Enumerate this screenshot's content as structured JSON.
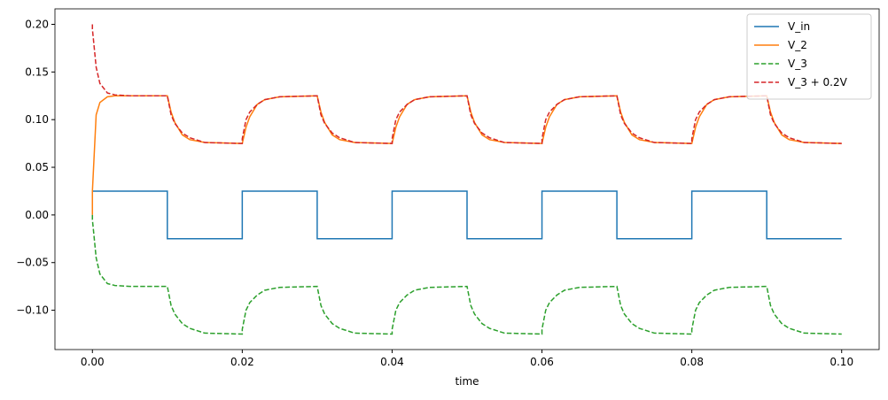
{
  "chart_data": {
    "type": "line",
    "xlabel": "time",
    "x": [
      0,
      0,
      0.0005,
      0.001,
      0.002,
      0.003,
      0.005,
      0.01,
      0.01,
      0.0105,
      0.011,
      0.012,
      0.013,
      0.015,
      0.02,
      0.02,
      0.0205,
      0.021,
      0.022,
      0.023,
      0.025,
      0.03,
      0.03,
      0.0305,
      0.031,
      0.032,
      0.033,
      0.035,
      0.04,
      0.04,
      0.0405,
      0.041,
      0.042,
      0.043,
      0.045,
      0.05,
      0.05,
      0.0505,
      0.051,
      0.052,
      0.053,
      0.055,
      0.06,
      0.06,
      0.0605,
      0.061,
      0.062,
      0.063,
      0.065,
      0.07,
      0.07,
      0.0705,
      0.071,
      0.072,
      0.073,
      0.075,
      0.08,
      0.08,
      0.0805,
      0.081,
      0.082,
      0.083,
      0.085,
      0.09,
      0.09,
      0.0905,
      0.091,
      0.092,
      0.093,
      0.095,
      0.1
    ],
    "series": [
      {
        "name": "V_in",
        "color": "#1f77b4",
        "dashed": false,
        "values": [
          0.025,
          0.025,
          0.025,
          0.025,
          0.025,
          0.025,
          0.025,
          0.025,
          -0.025,
          -0.025,
          -0.025,
          -0.025,
          -0.025,
          -0.025,
          -0.025,
          0.025,
          0.025,
          0.025,
          0.025,
          0.025,
          0.025,
          0.025,
          -0.025,
          -0.025,
          -0.025,
          -0.025,
          -0.025,
          -0.025,
          -0.025,
          0.025,
          0.025,
          0.025,
          0.025,
          0.025,
          0.025,
          0.025,
          -0.025,
          -0.025,
          -0.025,
          -0.025,
          -0.025,
          -0.025,
          -0.025,
          0.025,
          0.025,
          0.025,
          0.025,
          0.025,
          0.025,
          0.025,
          -0.025,
          -0.025,
          -0.025,
          -0.025,
          -0.025,
          -0.025,
          -0.025,
          0.025,
          0.025,
          0.025,
          0.025,
          0.025,
          0.025,
          0.025,
          -0.025,
          -0.025,
          -0.025,
          -0.025,
          -0.025,
          -0.025,
          -0.025
        ]
      },
      {
        "name": "V_2",
        "color": "#ff7f0e",
        "dashed": false,
        "values": [
          0,
          0.025,
          0.105,
          0.118,
          0.124,
          0.125,
          0.125,
          0.125,
          0.125,
          0.108,
          0.097,
          0.084,
          0.079,
          0.076,
          0.075,
          0.075,
          0.092,
          0.103,
          0.116,
          0.121,
          0.124,
          0.125,
          0.125,
          0.108,
          0.097,
          0.084,
          0.079,
          0.076,
          0.075,
          0.075,
          0.092,
          0.103,
          0.116,
          0.121,
          0.124,
          0.125,
          0.125,
          0.108,
          0.097,
          0.084,
          0.079,
          0.076,
          0.075,
          0.075,
          0.092,
          0.103,
          0.116,
          0.121,
          0.124,
          0.125,
          0.125,
          0.108,
          0.097,
          0.084,
          0.079,
          0.076,
          0.075,
          0.075,
          0.092,
          0.103,
          0.116,
          0.121,
          0.124,
          0.125,
          0.125,
          0.108,
          0.097,
          0.084,
          0.079,
          0.076,
          0.075
        ]
      },
      {
        "name": "V_3",
        "color": "#2ca02c",
        "dashed": true,
        "values": [
          0,
          -0.005,
          -0.045,
          -0.062,
          -0.072,
          -0.074,
          -0.075,
          -0.075,
          -0.075,
          -0.095,
          -0.104,
          -0.114,
          -0.119,
          -0.124,
          -0.125,
          -0.12,
          -0.1,
          -0.092,
          -0.084,
          -0.079,
          -0.076,
          -0.075,
          -0.075,
          -0.095,
          -0.104,
          -0.114,
          -0.119,
          -0.124,
          -0.125,
          -0.12,
          -0.1,
          -0.092,
          -0.084,
          -0.079,
          -0.076,
          -0.075,
          -0.075,
          -0.095,
          -0.104,
          -0.114,
          -0.119,
          -0.124,
          -0.125,
          -0.12,
          -0.1,
          -0.092,
          -0.084,
          -0.079,
          -0.076,
          -0.075,
          -0.075,
          -0.095,
          -0.104,
          -0.114,
          -0.119,
          -0.124,
          -0.125,
          -0.12,
          -0.1,
          -0.092,
          -0.084,
          -0.079,
          -0.076,
          -0.075,
          -0.075,
          -0.095,
          -0.104,
          -0.114,
          -0.119,
          -0.124,
          -0.125
        ]
      },
      {
        "name": "V_3 + 0.2V",
        "color": "#d62728",
        "dashed": true,
        "values": [
          0.2,
          0.195,
          0.155,
          0.138,
          0.128,
          0.126,
          0.125,
          0.125,
          0.125,
          0.105,
          0.096,
          0.086,
          0.081,
          0.076,
          0.075,
          0.08,
          0.1,
          0.108,
          0.116,
          0.121,
          0.124,
          0.125,
          0.125,
          0.105,
          0.096,
          0.086,
          0.081,
          0.076,
          0.075,
          0.08,
          0.1,
          0.108,
          0.116,
          0.121,
          0.124,
          0.125,
          0.125,
          0.105,
          0.096,
          0.086,
          0.081,
          0.076,
          0.075,
          0.08,
          0.1,
          0.108,
          0.116,
          0.121,
          0.124,
          0.125,
          0.125,
          0.105,
          0.096,
          0.086,
          0.081,
          0.076,
          0.075,
          0.08,
          0.1,
          0.108,
          0.116,
          0.121,
          0.124,
          0.125,
          0.125,
          0.105,
          0.096,
          0.086,
          0.081,
          0.076,
          0.075
        ]
      }
    ],
    "xlim": [
      -0.005,
      0.105
    ],
    "xticks": [
      {
        "value": 0,
        "label": "0.00"
      },
      {
        "value": 0.02,
        "label": "0.02"
      },
      {
        "value": 0.04,
        "label": "0.04"
      },
      {
        "value": 0.06,
        "label": "0.06"
      },
      {
        "value": 0.08,
        "label": "0.08"
      },
      {
        "value": 0.1,
        "label": "0.10"
      }
    ],
    "ylim": [
      -0.14125,
      0.21625
    ],
    "yticks": [
      {
        "value": -0.1,
        "label": "−0.10"
      },
      {
        "value": -0.05,
        "label": "−0.05"
      },
      {
        "value": 0,
        "label": "0.00"
      },
      {
        "value": 0.05,
        "label": "0.05"
      },
      {
        "value": 0.1,
        "label": "0.10"
      },
      {
        "value": 0.15,
        "label": "0.15"
      },
      {
        "value": 0.2,
        "label": "0.20"
      }
    ],
    "grid": false,
    "legend": "upper right"
  }
}
